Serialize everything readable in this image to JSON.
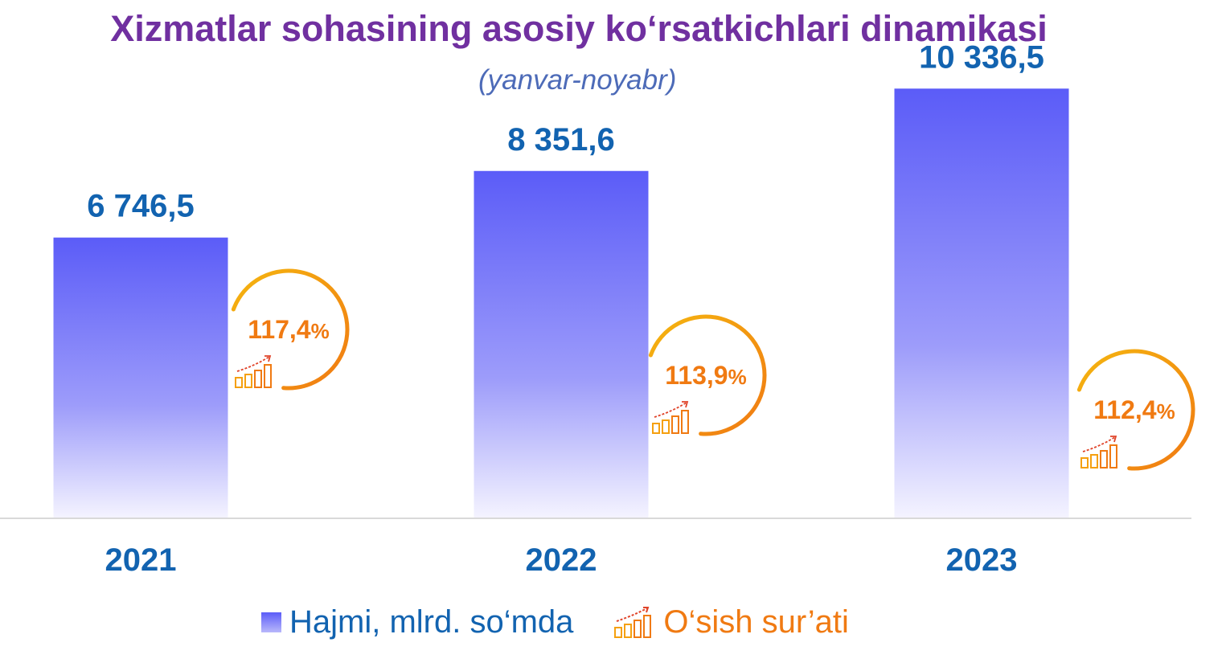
{
  "chart_data": {
    "type": "bar",
    "title": "Xizmatlar sohasining asosiy ko‘rsatkichlari dinamikasi",
    "subtitle": "(yanvar-noyabr)",
    "categories": [
      "2021",
      "2022",
      "2023"
    ],
    "series": [
      {
        "name": "Hajmi, mlrd. so‘mda",
        "values": [
          6746.5,
          8351.6,
          10336.5
        ],
        "value_labels": [
          "6 746,5",
          "8 351,6",
          "10 336,5"
        ],
        "color": "#5b5cf8"
      },
      {
        "name": "O‘sish sur’ati",
        "values": [
          117.4,
          113.9,
          112.4
        ],
        "value_labels": [
          "117,4",
          "113,9",
          "112,4"
        ],
        "unit": "%",
        "color": "#f07a12"
      }
    ],
    "ylim": [
      0,
      11000
    ],
    "grid": false,
    "legend_position": "bottom"
  },
  "colors": {
    "bar_top": "#5b5cf8",
    "bar_bottom": "#f4f3ff",
    "text_blue": "#1263b0",
    "title_purple": "#7030a0",
    "subtitle_blue": "#4d6bb8",
    "ring_orange": "#f07a12",
    "ring_yellow": "#f5b510",
    "baseline": "#d9d9d9"
  },
  "icons": {
    "growth_ring": "growth-ring-icon",
    "growth_bars": "growth-chart-icon",
    "legend_bar": "bar-swatch-icon"
  }
}
